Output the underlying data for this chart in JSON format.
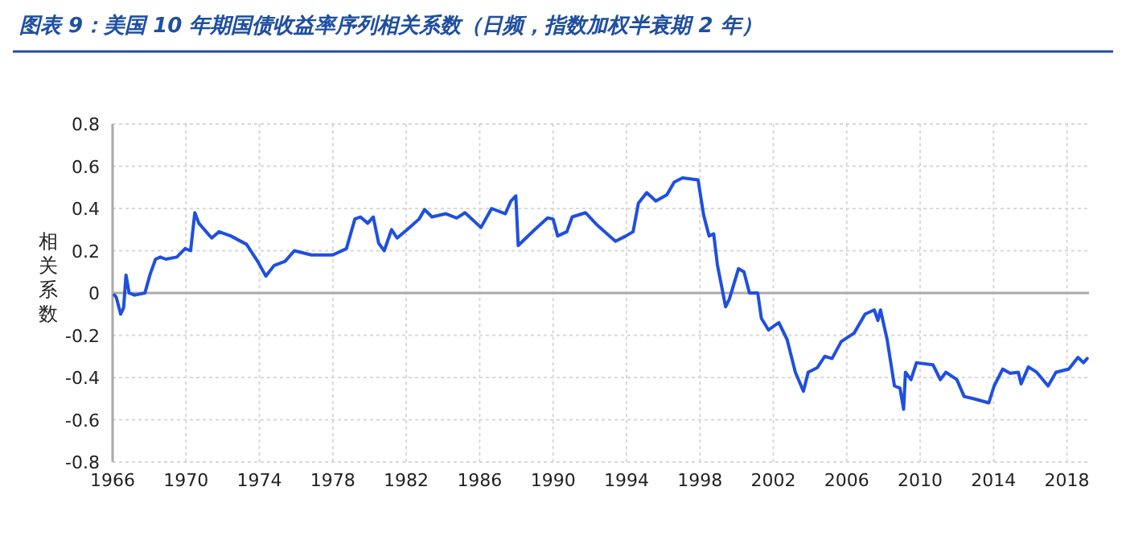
{
  "chart_data": {
    "type": "line",
    "title": "图表 9：美国 10 年期国债收益率序列相关系数（日频，指数加权半衰期 2 年）",
    "ylabel": "相关系数",
    "x": [
      1966.1,
      1966.2,
      1966.44,
      1966.6,
      1966.73,
      1966.9,
      1967.2,
      1967.76,
      1968.05,
      1968.34,
      1968.6,
      1968.9,
      1969.5,
      1969.95,
      1970.25,
      1970.48,
      1970.7,
      1971.4,
      1971.8,
      1972.44,
      1973.3,
      1973.9,
      1974.35,
      1974.8,
      1975.4,
      1975.9,
      1976.83,
      1978.0,
      1978.74,
      1979.2,
      1979.5,
      1979.9,
      1980.2,
      1980.5,
      1980.8,
      1981.2,
      1981.5,
      1982.05,
      1982.7,
      1983.0,
      1983.4,
      1984.16,
      1984.75,
      1985.2,
      1986.07,
      1986.65,
      1987.4,
      1987.7,
      1987.97,
      1988.1,
      1989.0,
      1989.7,
      1990.0,
      1990.25,
      1990.75,
      1991.04,
      1991.77,
      1992.36,
      1993.4,
      1993.97,
      1994.36,
      1994.65,
      1995.1,
      1995.6,
      1996.2,
      1996.6,
      1997.05,
      1997.9,
      1998.2,
      1998.5,
      1998.75,
      1998.95,
      1999.4,
      1999.6,
      2000.1,
      2000.4,
      2000.7,
      2001.15,
      2001.35,
      2001.74,
      2002.3,
      2002.75,
      2003.2,
      2003.64,
      2003.9,
      2004.4,
      2004.8,
      2005.2,
      2005.7,
      2006.4,
      2007.0,
      2007.5,
      2007.7,
      2007.84,
      2008.2,
      2008.6,
      2008.9,
      2009.1,
      2009.2,
      2009.5,
      2009.8,
      2010.7,
      2011.1,
      2011.4,
      2012.0,
      2012.4,
      2012.9,
      2013.74,
      2014.03,
      2014.5,
      2014.9,
      2015.35,
      2015.5,
      2015.9,
      2016.35,
      2016.97,
      2017.4,
      2018.1,
      2018.6,
      2018.9,
      2019.1
    ],
    "series": [
      {
        "color": "#1f4fe0",
        "values": [
          -0.01,
          -0.02,
          -0.1,
          -0.07,
          0.085,
          0.0,
          -0.01,
          0.0,
          0.09,
          0.16,
          0.17,
          0.16,
          0.17,
          0.21,
          0.2,
          0.38,
          0.33,
          0.26,
          0.29,
          0.27,
          0.23,
          0.15,
          0.08,
          0.13,
          0.15,
          0.2,
          0.18,
          0.18,
          0.21,
          0.35,
          0.36,
          0.33,
          0.36,
          0.235,
          0.2,
          0.3,
          0.26,
          0.3,
          0.35,
          0.395,
          0.36,
          0.375,
          0.355,
          0.38,
          0.31,
          0.4,
          0.375,
          0.435,
          0.46,
          0.225,
          0.3,
          0.355,
          0.35,
          0.27,
          0.29,
          0.36,
          0.38,
          0.325,
          0.245,
          0.27,
          0.29,
          0.425,
          0.475,
          0.435,
          0.465,
          0.525,
          0.545,
          0.535,
          0.37,
          0.27,
          0.28,
          0.135,
          -0.065,
          -0.03,
          0.115,
          0.1,
          0.0,
          0.0,
          -0.12,
          -0.175,
          -0.14,
          -0.22,
          -0.375,
          -0.465,
          -0.375,
          -0.353,
          -0.3,
          -0.31,
          -0.23,
          -0.19,
          -0.1,
          -0.08,
          -0.13,
          -0.08,
          -0.22,
          -0.44,
          -0.45,
          -0.55,
          -0.375,
          -0.41,
          -0.33,
          -0.34,
          -0.41,
          -0.375,
          -0.41,
          -0.49,
          -0.5,
          -0.52,
          -0.44,
          -0.36,
          -0.38,
          -0.375,
          -0.43,
          -0.35,
          -0.375,
          -0.44,
          -0.375,
          -0.36,
          -0.305,
          -0.33,
          -0.31
        ]
      }
    ],
    "xlim": [
      1966,
      2019.2
    ],
    "xticks": [
      1966,
      1970,
      1974,
      1978,
      1982,
      1986,
      1990,
      1994,
      1998,
      2002,
      2006,
      2010,
      2014,
      2018
    ],
    "ylim": [
      -0.8,
      0.8
    ],
    "yticks": [
      -0.8,
      -0.6,
      -0.4,
      -0.2,
      0,
      0.2,
      0.4,
      0.6,
      0.8
    ],
    "grid": true
  }
}
